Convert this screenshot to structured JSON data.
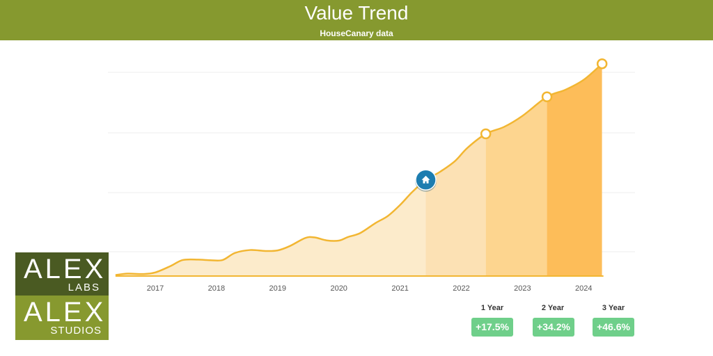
{
  "header": {
    "title": "Value Trend",
    "subtitle": "HouseCanary data"
  },
  "chart_data": {
    "type": "area",
    "x_ticks": [
      "2017",
      "2018",
      "2019",
      "2020",
      "2021",
      "2022",
      "2023",
      "2024"
    ],
    "grid": true,
    "series": [
      {
        "points": [
          [
            2016.35,
            0.5
          ],
          [
            2016.55,
            1.2
          ],
          [
            2016.8,
            1.0
          ],
          [
            2017.0,
            1.8
          ],
          [
            2017.25,
            5.0
          ],
          [
            2017.45,
            8.0
          ],
          [
            2017.7,
            8.2
          ],
          [
            2017.9,
            7.9
          ],
          [
            2018.1,
            8.0
          ],
          [
            2018.3,
            11.5
          ],
          [
            2018.55,
            13.0
          ],
          [
            2018.8,
            12.5
          ],
          [
            2019.0,
            12.8
          ],
          [
            2019.2,
            15.0
          ],
          [
            2019.45,
            19.0
          ],
          [
            2019.6,
            19.3
          ],
          [
            2019.8,
            17.8
          ],
          [
            2020.0,
            17.7
          ],
          [
            2020.15,
            19.5
          ],
          [
            2020.35,
            21.5
          ],
          [
            2020.6,
            26.5
          ],
          [
            2020.8,
            30.0
          ],
          [
            2021.0,
            35.5
          ],
          [
            2021.2,
            42.0
          ],
          [
            2021.42,
            48.0
          ],
          [
            2021.65,
            52.0
          ],
          [
            2021.9,
            57.5
          ],
          [
            2022.1,
            64.0
          ],
          [
            2022.4,
            71.0
          ],
          [
            2022.7,
            74.5
          ],
          [
            2023.0,
            80.0
          ],
          [
            2023.4,
            89.5
          ],
          [
            2023.7,
            93.0
          ],
          [
            2024.0,
            98.0
          ],
          [
            2024.3,
            106.0
          ]
        ]
      }
    ],
    "markers": [
      {
        "x": 2021.42,
        "y": 48.0,
        "type": "home",
        "icon": "home-icon"
      },
      {
        "x": 2022.4,
        "y": 71.0,
        "type": "point"
      },
      {
        "x": 2023.4,
        "y": 89.5,
        "type": "point"
      },
      {
        "x": 2024.3,
        "y": 106.0,
        "type": "point"
      }
    ],
    "shade_boundaries": [
      2021.42,
      2022.4,
      2023.4,
      2024.3
    ],
    "colors": {
      "line": "#f2b632",
      "base_fill": "#fcebcb",
      "bands": [
        "#fce1b4",
        "#fdd58f",
        "#fdbd59"
      ],
      "home_marker": "#1d7db0"
    }
  },
  "changes": [
    {
      "label": "1 Year",
      "value": "+17.5%"
    },
    {
      "label": "2 Year",
      "value": "+34.2%"
    },
    {
      "label": "3 Year",
      "value": "+46.6%"
    }
  ],
  "change_badge_color": "#6fcf8a",
  "logo": {
    "top_word": "ALEX",
    "top_sub": "LABS",
    "bottom_word": "ALEX",
    "bottom_sub": "STUDIOS"
  }
}
